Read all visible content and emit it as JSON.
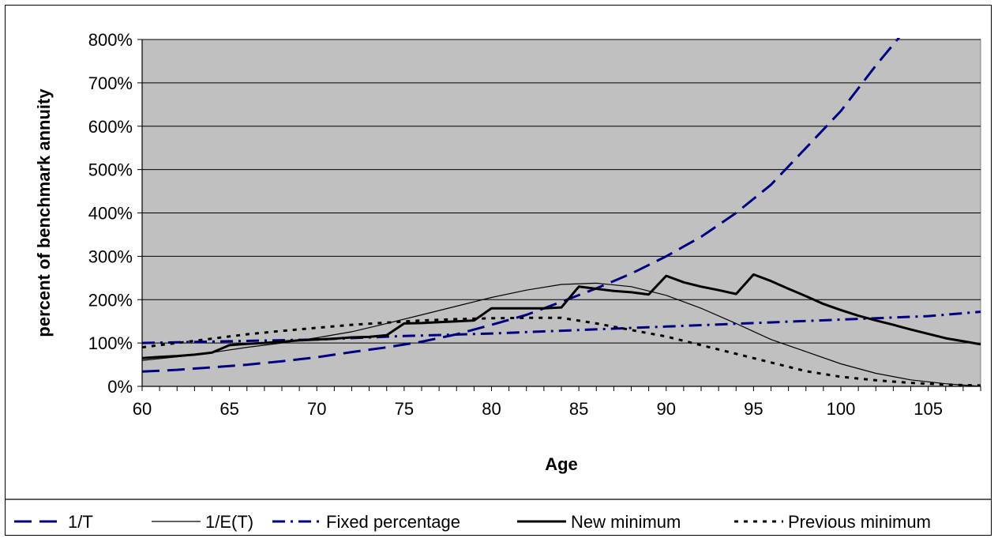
{
  "chart_data": {
    "type": "line",
    "xlabel": "Age",
    "ylabel": "percent of benchmark annuity",
    "xlim": [
      60,
      108
    ],
    "ylim": [
      0,
      800
    ],
    "x_ticks": [
      60,
      65,
      70,
      75,
      80,
      85,
      90,
      95,
      100,
      105
    ],
    "y_ticks": [
      0,
      100,
      200,
      300,
      400,
      500,
      600,
      700,
      800
    ],
    "y_tick_suffix": "%",
    "plot_background": "#c0c0c0",
    "grid": {
      "horizontal": true,
      "vertical": false,
      "color": "#000000"
    },
    "legend_position": "bottom",
    "series": [
      {
        "name": "1/T",
        "color": "#000080",
        "style": "long-dash",
        "points": [
          [
            60,
            34
          ],
          [
            62,
            38
          ],
          [
            64,
            44
          ],
          [
            66,
            50
          ],
          [
            68,
            58
          ],
          [
            70,
            67
          ],
          [
            72,
            79
          ],
          [
            74,
            90
          ],
          [
            76,
            103
          ],
          [
            78,
            120
          ],
          [
            80,
            142
          ],
          [
            82,
            165
          ],
          [
            84,
            195
          ],
          [
            86,
            226
          ],
          [
            88,
            260
          ],
          [
            90,
            300
          ],
          [
            92,
            345
          ],
          [
            94,
            400
          ],
          [
            96,
            465
          ],
          [
            98,
            550
          ],
          [
            100,
            635
          ],
          [
            102,
            740
          ],
          [
            103.4,
            808
          ]
        ]
      },
      {
        "name": "1/E(T)",
        "color": "#000000",
        "style": "thin",
        "points": [
          [
            60,
            60
          ],
          [
            62,
            68
          ],
          [
            64,
            78
          ],
          [
            66,
            90
          ],
          [
            68,
            100
          ],
          [
            70,
            112
          ],
          [
            72,
            126
          ],
          [
            74,
            145
          ],
          [
            76,
            165
          ],
          [
            78,
            185
          ],
          [
            80,
            205
          ],
          [
            82,
            222
          ],
          [
            84,
            235
          ],
          [
            86,
            238
          ],
          [
            88,
            230
          ],
          [
            90,
            210
          ],
          [
            92,
            180
          ],
          [
            94,
            145
          ],
          [
            96,
            108
          ],
          [
            98,
            80
          ],
          [
            100,
            52
          ],
          [
            102,
            30
          ],
          [
            104,
            15
          ],
          [
            106,
            6
          ],
          [
            108,
            0
          ]
        ]
      },
      {
        "name": "Fixed percentage",
        "color": "#000080",
        "style": "dash-dot",
        "points": [
          [
            60,
            100
          ],
          [
            65,
            104
          ],
          [
            70,
            108
          ],
          [
            75,
            116
          ],
          [
            80,
            122
          ],
          [
            85,
            130
          ],
          [
            90,
            138
          ],
          [
            95,
            146
          ],
          [
            100,
            154
          ],
          [
            105,
            162
          ],
          [
            108,
            172
          ]
        ]
      },
      {
        "name": "New minimum",
        "color": "#000000",
        "style": "thick",
        "points": [
          [
            60,
            65
          ],
          [
            61,
            68
          ],
          [
            62,
            70
          ],
          [
            63,
            73
          ],
          [
            64,
            78
          ],
          [
            65,
            95
          ],
          [
            66,
            98
          ],
          [
            67,
            100
          ],
          [
            68,
            103
          ],
          [
            69,
            106
          ],
          [
            70,
            108
          ],
          [
            71,
            110
          ],
          [
            72,
            113
          ],
          [
            73,
            114
          ],
          [
            74,
            118
          ],
          [
            75,
            145
          ],
          [
            76,
            146
          ],
          [
            77,
            148
          ],
          [
            78,
            150
          ],
          [
            79,
            152
          ],
          [
            80,
            180
          ],
          [
            81,
            180
          ],
          [
            82,
            180
          ],
          [
            83,
            180
          ],
          [
            84,
            182
          ],
          [
            85,
            230
          ],
          [
            86,
            225
          ],
          [
            87,
            220
          ],
          [
            88,
            217
          ],
          [
            89,
            212
          ],
          [
            90,
            255
          ],
          [
            91,
            240
          ],
          [
            92,
            230
          ],
          [
            93,
            222
          ],
          [
            94,
            213
          ],
          [
            95,
            258
          ],
          [
            96,
            243
          ],
          [
            97,
            225
          ],
          [
            98,
            208
          ],
          [
            99,
            190
          ],
          [
            100,
            176
          ],
          [
            101,
            163
          ],
          [
            102,
            152
          ],
          [
            103,
            142
          ],
          [
            104,
            131
          ],
          [
            105,
            121
          ],
          [
            106,
            111
          ],
          [
            107,
            104
          ],
          [
            108,
            97
          ]
        ]
      },
      {
        "name": "Previous minimum",
        "color": "#000000",
        "style": "dotted",
        "points": [
          [
            60,
            90
          ],
          [
            62,
            100
          ],
          [
            64,
            110
          ],
          [
            66,
            120
          ],
          [
            68,
            128
          ],
          [
            70,
            135
          ],
          [
            72,
            142
          ],
          [
            74,
            147
          ],
          [
            76,
            152
          ],
          [
            78,
            155
          ],
          [
            80,
            157
          ],
          [
            82,
            158
          ],
          [
            84,
            158
          ],
          [
            86,
            145
          ],
          [
            88,
            130
          ],
          [
            90,
            115
          ],
          [
            92,
            95
          ],
          [
            94,
            75
          ],
          [
            96,
            55
          ],
          [
            98,
            35
          ],
          [
            100,
            22
          ],
          [
            102,
            14
          ],
          [
            104,
            8
          ],
          [
            106,
            4
          ],
          [
            108,
            2
          ]
        ]
      }
    ]
  }
}
